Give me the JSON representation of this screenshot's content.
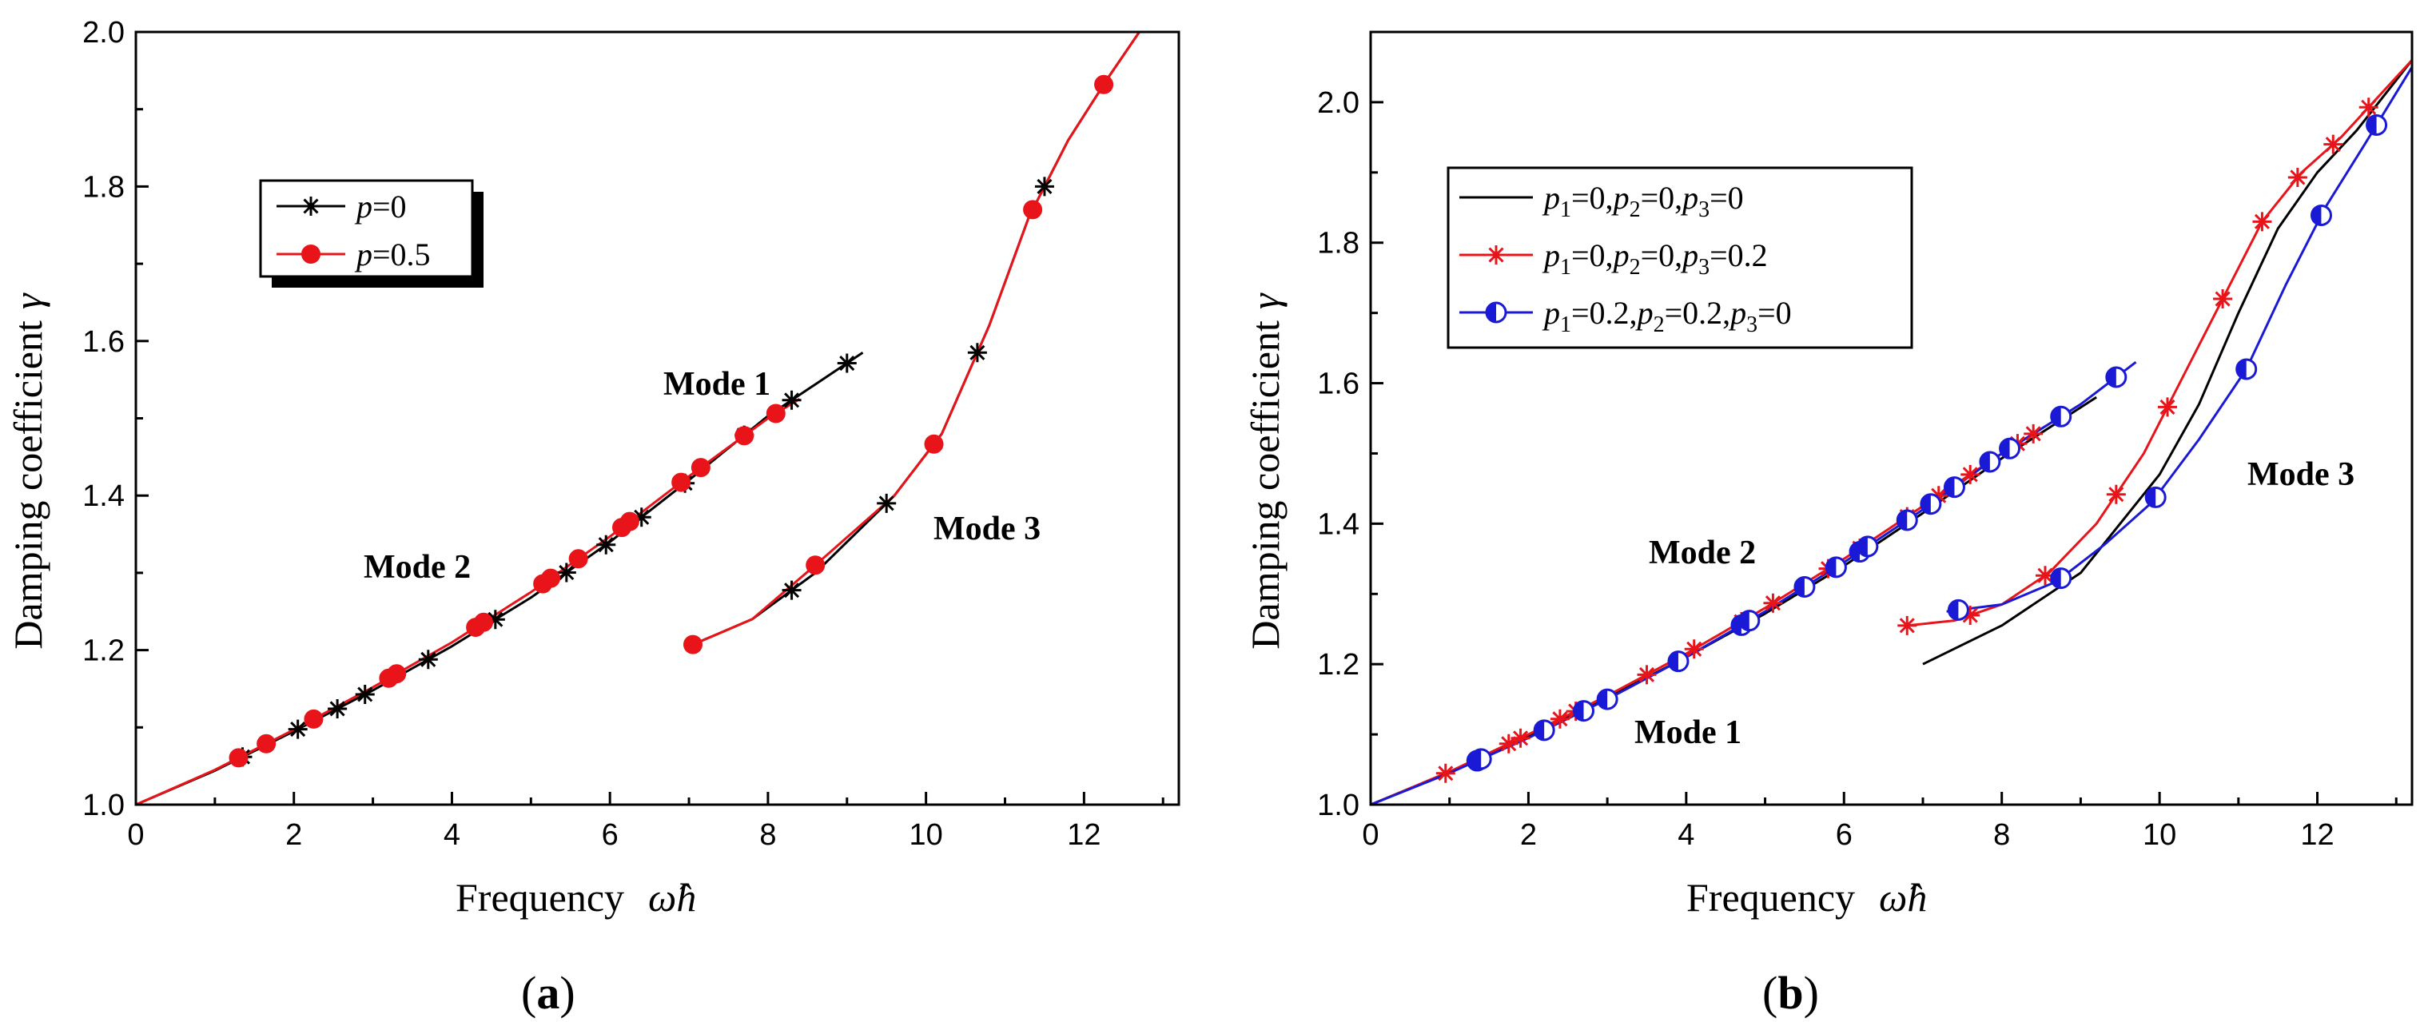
{
  "chart_data": [
    {
      "id": "a",
      "panel_label": "a",
      "type": "line",
      "xlabel": "Frequency",
      "xsymbol": "ω̂h",
      "ylabel": "Damping coefficient",
      "ysymbol": "γ",
      "xlim": [
        0,
        13.2
      ],
      "ylim": [
        1.0,
        2.0
      ],
      "xticks": [
        0,
        2,
        4,
        6,
        8,
        10,
        12
      ],
      "yticks": [
        1.0,
        1.2,
        1.4,
        1.6,
        1.8,
        2.0
      ],
      "legend": [
        {
          "var": "p",
          "eq": "=0",
          "color": "#000000",
          "marker": "star"
        },
        {
          "var": "p",
          "eq": "=0.5",
          "color": "#e8141a",
          "marker": "circle"
        }
      ],
      "annotations": [
        "Mode 1",
        "Mode 2",
        "Mode 3"
      ],
      "series": [
        {
          "name": "p=0, Mode 1/2",
          "color": "#000000",
          "marker": "star",
          "x": [
            0,
            1.0,
            2.0,
            3.0,
            4.0,
            5.0,
            6.0,
            7.0,
            8.0,
            9.2
          ],
          "y": [
            1.0,
            1.044,
            1.095,
            1.148,
            1.205,
            1.268,
            1.34,
            1.42,
            1.503,
            1.585
          ],
          "markers_x": [
            1.35,
            2.05,
            2.55,
            2.9,
            3.7,
            4.55,
            5.45,
            5.95,
            6.4,
            6.95,
            7.7,
            8.3,
            9.0
          ]
        },
        {
          "name": "p=0, Mode 3",
          "color": "#000000",
          "marker": "star",
          "x": [
            7.0,
            7.8,
            8.6,
            9.6,
            10.2,
            10.8,
            11.3,
            11.8,
            12.3,
            12.7
          ],
          "y": [
            1.205,
            1.24,
            1.3,
            1.4,
            1.48,
            1.62,
            1.76,
            1.86,
            1.94,
            2.0
          ],
          "markers_x": [
            8.3,
            9.5,
            10.65,
            11.5
          ]
        },
        {
          "name": "p=0.5, Mode 1/2",
          "color": "#e8141a",
          "marker": "circle",
          "x": [
            0,
            1.0,
            2.0,
            3.0,
            4.0,
            5.0,
            6.0,
            7.0,
            8.0,
            8.4
          ],
          "y": [
            1.0,
            1.045,
            1.097,
            1.152,
            1.21,
            1.275,
            1.347,
            1.425,
            1.5,
            1.525
          ],
          "markers_x": [
            1.3,
            1.65,
            2.25,
            3.2,
            3.3,
            4.3,
            4.4,
            5.15,
            5.25,
            5.6,
            6.15,
            6.25,
            6.9,
            7.15,
            7.7,
            8.1
          ]
        },
        {
          "name": "p=0.5, Mode 3",
          "color": "#e8141a",
          "marker": "circle",
          "x": [
            7.0,
            7.8,
            8.6,
            9.6,
            10.2,
            10.8,
            11.3,
            11.8,
            12.3,
            12.7
          ],
          "y": [
            1.205,
            1.24,
            1.31,
            1.4,
            1.48,
            1.62,
            1.76,
            1.86,
            1.94,
            2.0
          ],
          "markers_x": [
            7.05,
            8.6,
            10.1,
            11.35,
            12.25
          ]
        }
      ]
    },
    {
      "id": "b",
      "panel_label": "b",
      "type": "line",
      "xlabel": "Frequency",
      "xsymbol": "ω̂h",
      "ylabel": "Damping coefficient",
      "ysymbol": "γ",
      "xlim": [
        0,
        13.2
      ],
      "ylim": [
        1.0,
        2.1
      ],
      "xticks": [
        0,
        2,
        4,
        6,
        8,
        10,
        12
      ],
      "yticks": [
        1.0,
        1.2,
        1.4,
        1.6,
        1.8,
        2.0
      ],
      "legend": [
        {
          "text": "p1=0,p2=0,p3=0",
          "color": "#000000",
          "marker": "none"
        },
        {
          "text": "p1=0,p2=0,p3=0.2",
          "color": "#e8141a",
          "marker": "star"
        },
        {
          "text": "p1=0.2,p2=0.2,p3=0",
          "color": "#1a1ad6",
          "marker": "halfcircle"
        }
      ],
      "annotations": [
        "Mode 1",
        "Mode 2",
        "Mode 3"
      ],
      "series": [
        {
          "name": "p1=0,p2=0,p3=0 Mode 1/2",
          "color": "#000000",
          "marker": "none",
          "x": [
            0,
            1.0,
            2.0,
            3.0,
            4.0,
            5.0,
            6.0,
            7.0,
            8.0,
            9.2
          ],
          "y": [
            1.0,
            1.046,
            1.098,
            1.152,
            1.21,
            1.272,
            1.34,
            1.415,
            1.493,
            1.58
          ],
          "markers_x": []
        },
        {
          "name": "p1=0,p2=0,p3=0 Mode 3",
          "color": "#000000",
          "marker": "none",
          "x": [
            7.0,
            8.0,
            9.0,
            10.0,
            10.5,
            11.0,
            11.5,
            12.0,
            12.5,
            13.2
          ],
          "y": [
            1.2,
            1.255,
            1.33,
            1.47,
            1.57,
            1.7,
            1.82,
            1.9,
            1.96,
            2.06
          ],
          "markers_x": []
        },
        {
          "name": "p1=0,p2=0,p3=0.2 Mode 1/2",
          "color": "#e8141a",
          "marker": "star",
          "x": [
            0,
            1.0,
            2.0,
            3.0,
            4.0,
            5.0,
            6.0,
            7.0,
            8.0,
            8.5
          ],
          "y": [
            1.0,
            1.047,
            1.1,
            1.155,
            1.215,
            1.28,
            1.35,
            1.425,
            1.5,
            1.535
          ],
          "markers_x": [
            0.95,
            1.75,
            1.9,
            2.4,
            2.6,
            3.5,
            4.1,
            4.7,
            5.1,
            5.8,
            6.2,
            6.8,
            7.2,
            7.6,
            8.2,
            8.4
          ]
        },
        {
          "name": "p1=0,p2=0,p3=0.2 Mode 3",
          "color": "#e8141a",
          "marker": "star",
          "x": [
            6.8,
            7.4,
            8.0,
            8.6,
            9.2,
            9.8,
            10.3,
            10.8,
            11.3,
            11.8,
            12.3,
            13.2
          ],
          "y": [
            1.255,
            1.262,
            1.285,
            1.33,
            1.4,
            1.5,
            1.61,
            1.72,
            1.83,
            1.9,
            1.95,
            2.06
          ],
          "markers_x": [
            6.8,
            7.6,
            8.55,
            9.45,
            10.1,
            10.8,
            11.3,
            11.75,
            12.2,
            12.65
          ]
        },
        {
          "name": "p1=0.2,p2=0.2,p3=0 Mode 1/2",
          "color": "#1a1ad6",
          "marker": "halfcircle",
          "x": [
            0,
            1.0,
            2.0,
            3.0,
            4.0,
            5.0,
            6.0,
            7.0,
            8.0,
            9.0,
            9.7
          ],
          "y": [
            1.0,
            1.045,
            1.095,
            1.15,
            1.21,
            1.275,
            1.345,
            1.42,
            1.5,
            1.57,
            1.63
          ],
          "markers_x": [
            1.35,
            1.4,
            2.2,
            2.7,
            3.0,
            3.9,
            4.7,
            4.8,
            5.5,
            5.9,
            6.2,
            6.3,
            6.8,
            7.1,
            7.4,
            7.85,
            8.1,
            8.75,
            9.45
          ]
        },
        {
          "name": "p1=0.2,p2=0.2,p3=0 Mode 3",
          "color": "#1a1ad6",
          "marker": "halfcircle",
          "x": [
            7.3,
            8.0,
            8.7,
            9.3,
            9.9,
            10.5,
            11.1,
            11.6,
            12.1,
            12.6,
            13.2
          ],
          "y": [
            1.275,
            1.285,
            1.318,
            1.37,
            1.43,
            1.52,
            1.62,
            1.74,
            1.85,
            1.94,
            2.05
          ],
          "markers_x": [
            7.45,
            8.75,
            9.95,
            11.1,
            12.05,
            12.75
          ]
        }
      ]
    }
  ]
}
